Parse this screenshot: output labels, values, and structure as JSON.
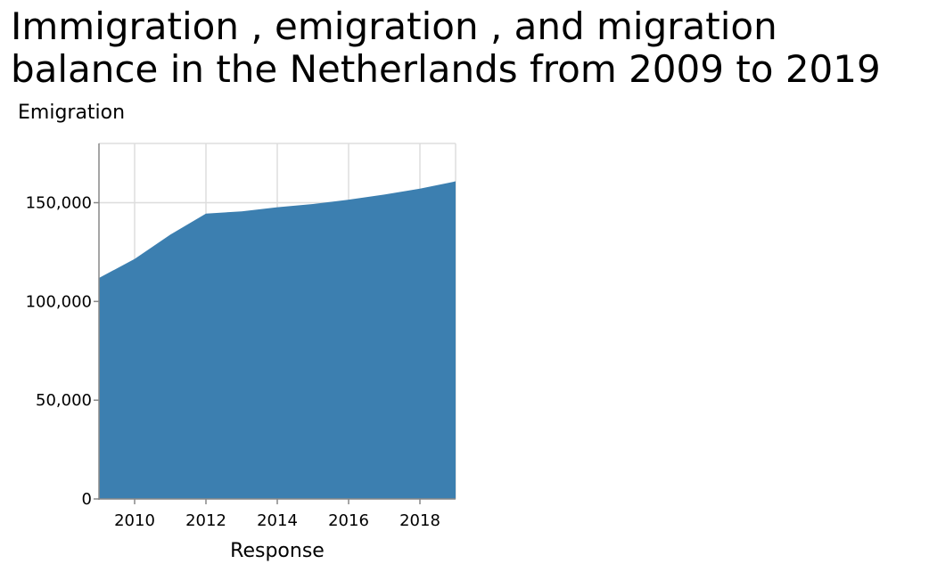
{
  "chart_data": {
    "type": "area",
    "title": "Immigration , emigration , and migration balance in the Netherlands from 2009 to 2019",
    "xlabel": "Response",
    "ylabel": "Emigration",
    "x": [
      2009,
      2010,
      2011,
      2012,
      2013,
      2014,
      2015,
      2016,
      2017,
      2018,
      2019
    ],
    "series": [
      {
        "values": [
          111900,
          121500,
          133800,
          144500,
          145600,
          147700,
          149300,
          151500,
          154100,
          157100,
          160800
        ],
        "color": "#3c7fb0"
      }
    ],
    "xlim": [
      2009,
      2019
    ],
    "ylim": [
      0,
      180000
    ],
    "xticks": [
      2010,
      2012,
      2014,
      2016,
      2018
    ],
    "yticks": [
      0,
      50000,
      100000,
      150000
    ],
    "xtick_labels": [
      "2010",
      "2012",
      "2014",
      "2016",
      "2018"
    ],
    "ytick_labels": [
      "0",
      "50,000",
      "100,000",
      "150,000"
    ],
    "grid": true,
    "legend": "none"
  }
}
